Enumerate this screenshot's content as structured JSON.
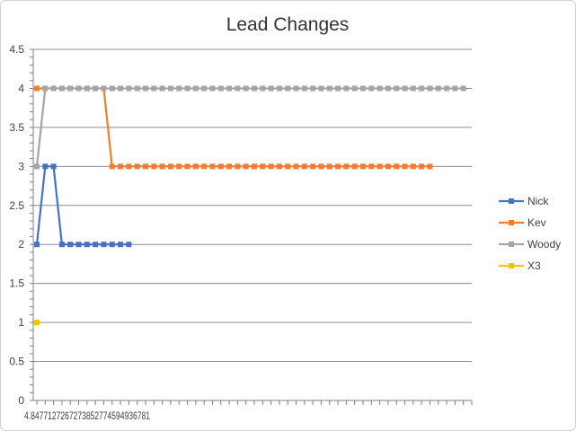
{
  "chart_data": {
    "type": "line",
    "title": "Lead Changes",
    "xlabel": "",
    "ylabel": "",
    "ylim": [
      0,
      4.5
    ],
    "yticks": [
      "0",
      "0.5",
      "1",
      "1.5",
      "2",
      "2.5",
      "3",
      "3.5",
      "4",
      "4.5"
    ],
    "x_tick_labels_text": "4.8477127267273852774594936781",
    "grid": "horizontal",
    "legend": "right",
    "series": [
      {
        "name": "Nick",
        "color": "#4472C4",
        "values": [
          2,
          3,
          3,
          2,
          2,
          2,
          2,
          2,
          2,
          2,
          2,
          2
        ]
      },
      {
        "name": "Kev",
        "color": "#ED7D31",
        "values": [
          4,
          4,
          4,
          4,
          4,
          4,
          4,
          4,
          4,
          3,
          3,
          3,
          3,
          3,
          3,
          3,
          3,
          3,
          3,
          3,
          3,
          3,
          3,
          3,
          3,
          3,
          3,
          3,
          3,
          3,
          3,
          3,
          3,
          3,
          3,
          3,
          3,
          3,
          3,
          3,
          3,
          3,
          3,
          3,
          3,
          3,
          3,
          3
        ]
      },
      {
        "name": "Woody",
        "color": "#A5A5A5",
        "values": [
          3,
          4,
          4,
          4,
          4,
          4,
          4,
          4,
          4,
          4,
          4,
          4,
          4,
          4,
          4,
          4,
          4,
          4,
          4,
          4,
          4,
          4,
          4,
          4,
          4,
          4,
          4,
          4,
          4,
          4,
          4,
          4,
          4,
          4,
          4,
          4,
          4,
          4,
          4,
          4,
          4,
          4,
          4,
          4,
          4,
          4,
          4,
          4,
          4,
          4,
          4,
          4
        ]
      },
      {
        "name": "X3",
        "color": "#FFC000",
        "values": [
          1
        ]
      }
    ]
  }
}
